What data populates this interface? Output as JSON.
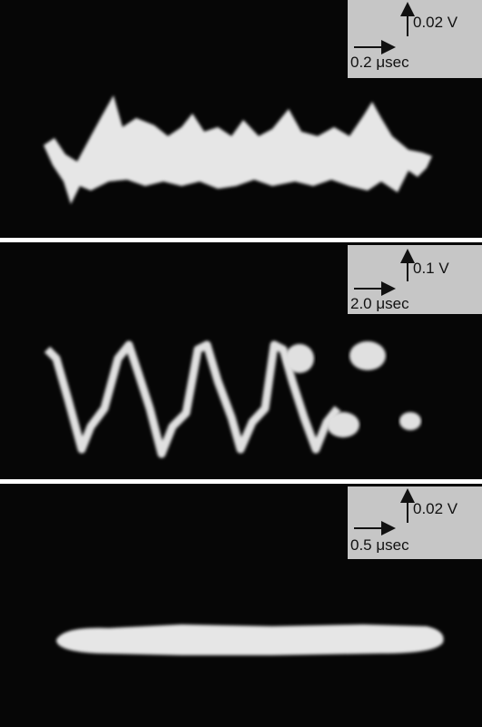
{
  "panels": [
    {
      "voltage_scale": "0.02 V",
      "time_scale": "0.2 μsec"
    },
    {
      "voltage_scale": "0.1 V",
      "time_scale": "2.0 μsec"
    },
    {
      "voltage_scale": "0.02 V",
      "time_scale": "0.5 μsec"
    }
  ]
}
